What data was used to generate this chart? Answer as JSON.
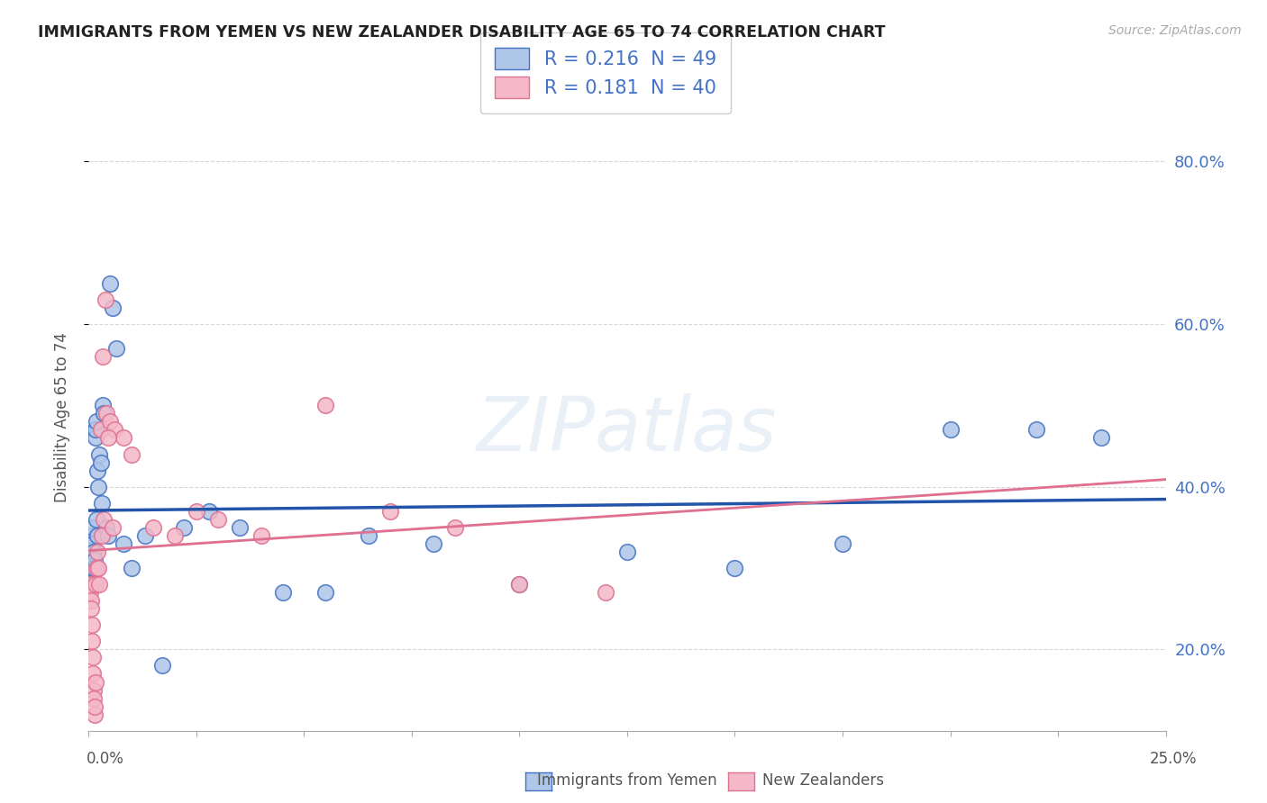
{
  "title": "IMMIGRANTS FROM YEMEN VS NEW ZEALANDER DISABILITY AGE 65 TO 74 CORRELATION CHART",
  "source": "Source: ZipAtlas.com",
  "ylabel": "Disability Age 65 to 74",
  "legend1_label": "R = 0.216  N = 49",
  "legend2_label": "R = 0.181  N = 40",
  "legend_text_color": "#4472c4",
  "xlim": [
    0.0,
    25.0
  ],
  "ylim": [
    10.0,
    87.0
  ],
  "blue_color": "#aec6e8",
  "blue_edge_color": "#4472c4",
  "blue_line_color": "#2255aa",
  "pink_color": "#f4b8c8",
  "pink_edge_color": "#e07090",
  "pink_line_color": "#e07090",
  "watermark": "ZIPatlas",
  "background_color": "#ffffff",
  "grid_color": "#d8d8d8",
  "ytick_vals": [
    20,
    40,
    60,
    80
  ],
  "ytick_labels": [
    "20.0%",
    "40.0%",
    "60.0%",
    "80.0%"
  ],
  "blue_x": [
    0.03,
    0.04,
    0.05,
    0.06,
    0.07,
    0.08,
    0.09,
    0.1,
    0.1,
    0.11,
    0.12,
    0.13,
    0.14,
    0.15,
    0.15,
    0.16,
    0.17,
    0.18,
    0.19,
    0.2,
    0.22,
    0.25,
    0.28,
    0.3,
    0.32,
    0.35,
    0.4,
    0.45,
    0.5,
    0.55,
    0.65,
    0.8,
    1.0,
    1.3,
    1.7,
    2.2,
    2.8,
    3.5,
    4.5,
    5.5,
    6.5,
    8.0,
    10.0,
    12.5,
    15.0,
    17.5,
    20.0,
    22.0,
    23.5
  ],
  "blue_y": [
    30.0,
    29.0,
    28.0,
    31.0,
    30.0,
    32.0,
    34.0,
    33.0,
    35.0,
    32.0,
    30.0,
    28.0,
    31.0,
    47.0,
    46.0,
    47.0,
    48.0,
    36.0,
    34.0,
    42.0,
    40.0,
    44.0,
    43.0,
    38.0,
    50.0,
    49.0,
    35.0,
    34.0,
    65.0,
    62.0,
    57.0,
    33.0,
    30.0,
    34.0,
    18.0,
    35.0,
    37.0,
    35.0,
    27.0,
    27.0,
    34.0,
    33.0,
    28.0,
    32.0,
    30.0,
    33.0,
    47.0,
    47.0,
    46.0
  ],
  "pink_x": [
    0.03,
    0.04,
    0.05,
    0.06,
    0.07,
    0.08,
    0.09,
    0.1,
    0.11,
    0.12,
    0.13,
    0.14,
    0.15,
    0.16,
    0.18,
    0.2,
    0.22,
    0.25,
    0.28,
    0.3,
    0.35,
    0.4,
    0.5,
    0.6,
    0.8,
    1.0,
    1.5,
    2.0,
    2.5,
    3.0,
    4.0,
    5.5,
    7.0,
    8.5,
    10.0,
    12.0,
    0.32,
    0.38,
    0.45,
    0.55
  ],
  "pink_y": [
    28.0,
    27.0,
    26.0,
    25.0,
    23.0,
    21.0,
    19.0,
    17.0,
    15.0,
    14.0,
    12.0,
    13.0,
    16.0,
    28.0,
    30.0,
    32.0,
    30.0,
    28.0,
    47.0,
    34.0,
    36.0,
    49.0,
    48.0,
    47.0,
    46.0,
    44.0,
    35.0,
    34.0,
    37.0,
    36.0,
    34.0,
    50.0,
    37.0,
    35.0,
    28.0,
    27.0,
    56.0,
    63.0,
    46.0,
    35.0
  ]
}
